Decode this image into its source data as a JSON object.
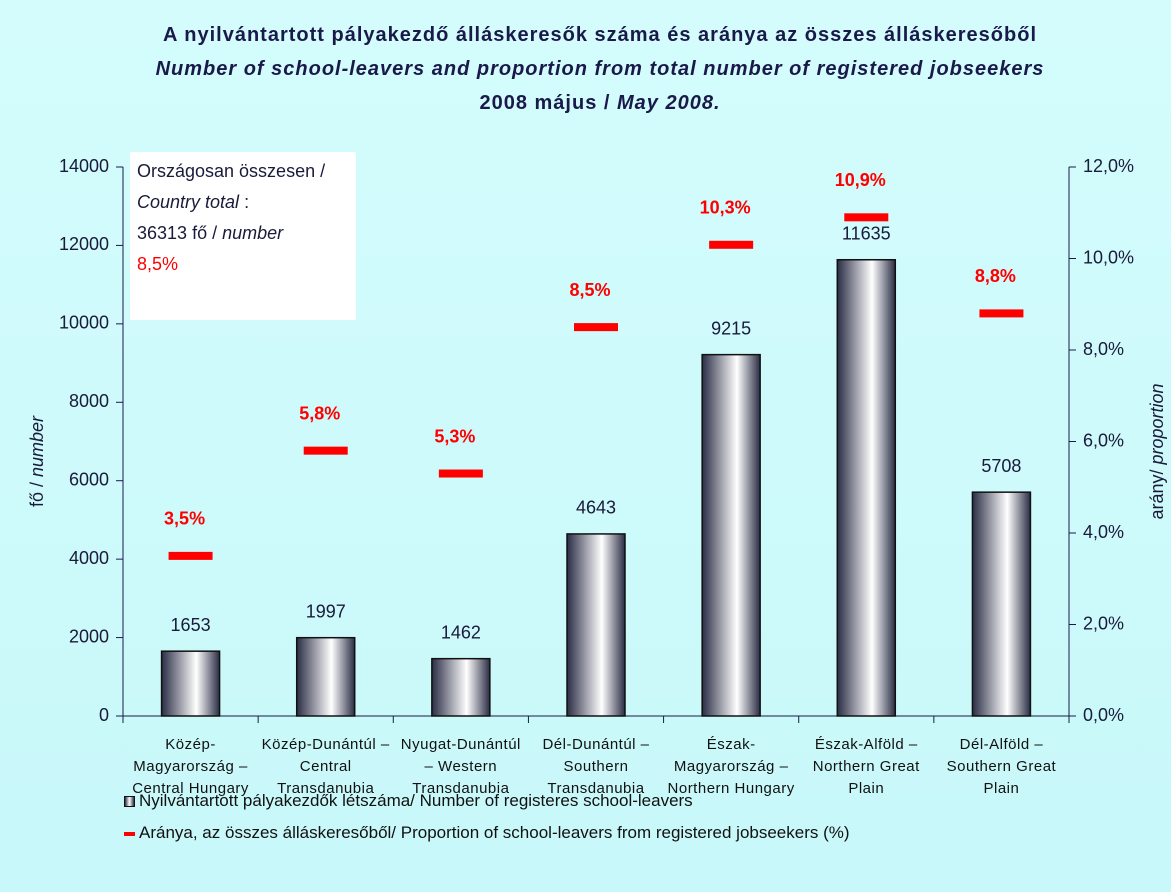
{
  "chart_data": {
    "type": "bar_line",
    "title": "A nyilvántartott pályakezdő álláskeresők száma és aránya az összes álláskeresőből",
    "subtitle": "Number of school-leavers and proportion from total number of registered jobseekers",
    "date": [
      "2008 május /",
      "May 2008."
    ],
    "ylabel": [
      "fő /",
      "number"
    ],
    "y2label": [
      "arány/",
      "proportion"
    ],
    "annotation": {
      "label": [
        "Országosan összesen /",
        "Country total",
        ":"
      ],
      "total": 36313,
      "unit": [
        "fő /",
        "number"
      ],
      "proportion": 8.5,
      "proportion_label": "8,5%"
    },
    "categories": [
      "Közép-Magyarország – Central Hungary",
      "Közép-Dunántúl – Central Transdanubia",
      "Nyugat-Dunántúl – Western Transdanubia",
      "Dél-Dunántúl – Southern Transdanubia",
      "Észak-Magyarország – Northern Hungary",
      "Észak-Alföld – Northern Great Plain",
      "Dél-Alföld – Southern Great Plain"
    ],
    "series": [
      {
        "name": "Nyilvántartott pályakezdők létszáma/ Number of registeres school-leavers",
        "kind": "bar",
        "color": "#2a2d45",
        "values": [
          1653,
          1997,
          1462,
          4643,
          9215,
          11635,
          5708
        ]
      },
      {
        "name": "Aránya, az összes álláskeresőből/ Proportion of school-leavers from registered jobseekers (%)",
        "kind": "marker",
        "axis": "y2",
        "color": "#ff0000",
        "values": [
          3.5,
          5.8,
          5.3,
          8.5,
          10.3,
          10.9,
          8.8
        ],
        "value_labels": [
          "3,5%",
          "5,8%",
          "5,3%",
          "8,5%",
          "10,3%",
          "10,9%",
          "8,8%"
        ]
      }
    ],
    "ylim": [
      0,
      14000
    ],
    "yticks": [
      0,
      2000,
      4000,
      6000,
      8000,
      10000,
      12000,
      14000
    ],
    "y2lim": [
      0,
      12
    ],
    "y2ticks": [
      {
        "value": 0,
        "label": "0,0%"
      },
      {
        "value": 2,
        "label": "2,0%"
      },
      {
        "value": 4,
        "label": "4,0%"
      },
      {
        "value": 6,
        "label": "6,0%"
      },
      {
        "value": 8,
        "label": "8,0%"
      },
      {
        "value": 10,
        "label": "10,0%"
      },
      {
        "value": 12,
        "label": "12,0%"
      }
    ]
  }
}
